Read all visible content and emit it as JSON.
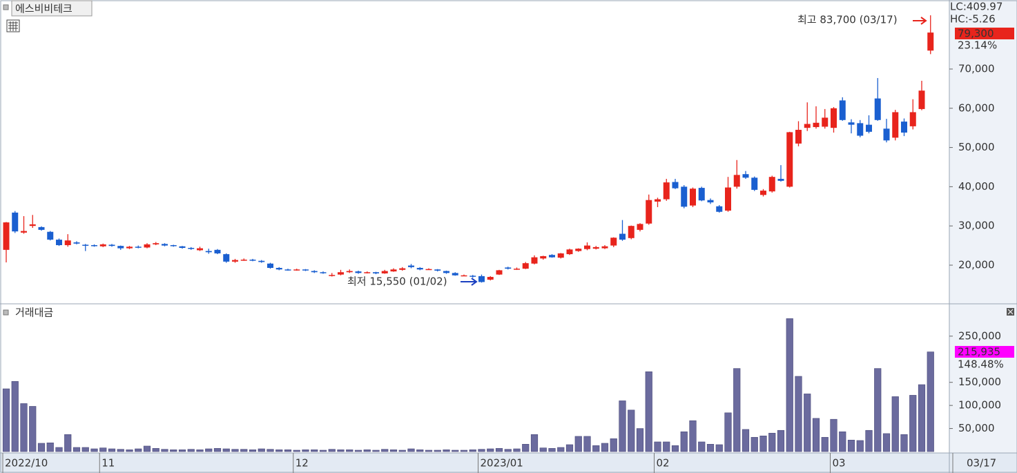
{
  "chart_data": [
    {
      "type": "candlestick",
      "title": "에스비비테크",
      "ylim": [
        10140,
        87600
      ],
      "yticks": [
        {
          "value": 20000,
          "label": "20,000"
        },
        {
          "value": 30000,
          "label": "30,000"
        },
        {
          "value": 40000,
          "label": "40,000"
        },
        {
          "value": 50000,
          "label": "50,000"
        },
        {
          "value": 60000,
          "label": "60,000"
        },
        {
          "value": 70000,
          "label": "70,000"
        }
      ],
      "up_color": "#e8241c",
      "down_color": "#1a5fd0",
      "open": [
        23900,
        33400,
        28300,
        30000,
        29700,
        28500,
        26500,
        25100,
        25800,
        25200,
        25100,
        24800,
        25200,
        24900,
        24300,
        24700,
        24500,
        25300,
        25400,
        25100,
        24800,
        24400,
        23800,
        23600,
        23900,
        22800,
        20900,
        21300,
        21400,
        21100,
        20400,
        19300,
        18900,
        18800,
        18900,
        18500,
        18200,
        17400,
        17600,
        18200,
        18400,
        18000,
        18200,
        17900,
        18400,
        18800,
        19900,
        19300,
        18900,
        18900,
        18500,
        18000,
        17400,
        17300,
        17200,
        16300,
        17600,
        19400,
        19000,
        19100,
        20400,
        21700,
        22600,
        21900,
        22800,
        23600,
        24100,
        24200,
        24300,
        25000,
        28000,
        26900,
        29000,
        30600,
        36200,
        36800,
        41200,
        40000,
        35200,
        39700,
        36600,
        35000,
        33900,
        40000,
        43200,
        42300,
        37900,
        38800,
        42000,
        40000,
        51000,
        55000,
        55200,
        55300,
        55000,
        62000,
        56400,
        56200,
        55800,
        62500,
        54800,
        52500,
        56600,
        55400,
        59800,
        74700
      ],
      "high": [
        31000,
        33800,
        32500,
        32800,
        29900,
        28700,
        26800,
        27900,
        26100,
        25400,
        25300,
        25500,
        25400,
        25000,
        24900,
        25000,
        25600,
        25900,
        25600,
        25200,
        24900,
        24600,
        24700,
        24200,
        24100,
        23000,
        21600,
        21700,
        21600,
        21300,
        20600,
        19500,
        19100,
        19100,
        19000,
        18700,
        18400,
        18000,
        18800,
        18900,
        18600,
        18400,
        18300,
        18800,
        19200,
        19500,
        20300,
        19500,
        19200,
        19000,
        18600,
        18200,
        17600,
        17500,
        17600,
        17200,
        18800,
        19600,
        19400,
        20800,
        22500,
        22400,
        22800,
        23100,
        24200,
        24300,
        25800,
        24900,
        25100,
        27100,
        31500,
        30100,
        30700,
        38000,
        37200,
        42000,
        42000,
        40400,
        39800,
        40000,
        37000,
        35300,
        42500,
        46800,
        44000,
        42600,
        39400,
        42800,
        45500,
        54000,
        56700,
        61500,
        60500,
        59800,
        60300,
        62800,
        57200,
        57000,
        58200,
        67700,
        57300,
        59600,
        57400,
        62300,
        67000,
        83700
      ],
      "low": [
        20700,
        28200,
        28000,
        29500,
        28800,
        26300,
        24900,
        24700,
        25300,
        23600,
        24700,
        24600,
        24700,
        23900,
        24100,
        24300,
        24300,
        25100,
        24800,
        24700,
        24200,
        23900,
        23600,
        22900,
        22800,
        20600,
        20600,
        21100,
        21000,
        20600,
        19100,
        18700,
        18600,
        18600,
        18500,
        18000,
        17800,
        17100,
        17400,
        18000,
        17800,
        17900,
        17700,
        17800,
        18300,
        18600,
        19200,
        18700,
        18800,
        18400,
        17800,
        17300,
        17200,
        16800,
        15550,
        16100,
        17500,
        18900,
        18800,
        19000,
        20200,
        21400,
        21900,
        21700,
        22600,
        23400,
        23800,
        24000,
        24100,
        24600,
        26200,
        26600,
        28600,
        30300,
        34800,
        36400,
        39400,
        34500,
        34800,
        36300,
        35600,
        33400,
        33600,
        39500,
        42000,
        38900,
        37500,
        38500,
        41300,
        39800,
        50300,
        54200,
        54800,
        54800,
        53800,
        56800,
        53600,
        52600,
        53600,
        56800,
        51300,
        51800,
        52900,
        54600,
        59500,
        73800
      ],
      "close": [
        30900,
        28600,
        28700,
        30400,
        29000,
        26500,
        25100,
        26300,
        25500,
        25000,
        24900,
        25300,
        24900,
        24300,
        24700,
        24500,
        25300,
        25600,
        25000,
        24900,
        24400,
        24200,
        24300,
        23300,
        23000,
        20900,
        21300,
        21400,
        21200,
        20800,
        19300,
        18900,
        18800,
        18900,
        18700,
        18200,
        18000,
        17500,
        18200,
        18500,
        18000,
        18200,
        17900,
        18500,
        18900,
        19200,
        19500,
        18900,
        19000,
        18600,
        18000,
        17400,
        17400,
        17100,
        15700,
        17000,
        18700,
        19100,
        19100,
        20500,
        22000,
        22300,
        22000,
        23000,
        24000,
        24200,
        25000,
        24600,
        24800,
        27000,
        26500,
        30000,
        30500,
        36600,
        36800,
        41100,
        39600,
        34900,
        39500,
        36500,
        36000,
        33600,
        39800,
        43000,
        42300,
        39200,
        39000,
        42500,
        41500,
        53900,
        54500,
        56000,
        56300,
        57600,
        60000,
        57000,
        55800,
        53000,
        54000,
        57000,
        51800,
        59000,
        53800,
        59000,
        64500,
        79300
      ],
      "indicators": [
        "LC:409.97",
        "HC:-5.26"
      ],
      "current_price": {
        "value": 79300,
        "label": "79,300"
      },
      "change_pct": "23.14%",
      "high_note": "최고 83,700 (03/17)",
      "low_note": "최저 15,550 (01/02)"
    },
    {
      "type": "bar",
      "title": "거래대금",
      "color": "#6b6b9e",
      "ylim": [
        0,
        320000
      ],
      "yticks": [
        {
          "value": 50000,
          "label": "50,000"
        },
        {
          "value": 100000,
          "label": "100,000"
        },
        {
          "value": 150000,
          "label": "150,000"
        },
        {
          "value": 250000,
          "label": "250,000"
        }
      ],
      "categories": [
        "2022/10",
        null,
        null,
        null,
        null,
        null,
        null,
        null,
        null,
        null,
        null,
        "11",
        null,
        null,
        null,
        null,
        null,
        null,
        null,
        null,
        null,
        null,
        null,
        null,
        null,
        null,
        null,
        null,
        null,
        null,
        null,
        null,
        null,
        "12",
        null,
        null,
        null,
        null,
        null,
        null,
        null,
        null,
        null,
        null,
        null,
        null,
        null,
        null,
        null,
        null,
        null,
        null,
        null,
        null,
        "2023/01",
        null,
        null,
        null,
        null,
        null,
        null,
        null,
        null,
        null,
        null,
        null,
        null,
        null,
        null,
        null,
        null,
        null,
        null,
        null,
        "02",
        null,
        null,
        null,
        null,
        null,
        null,
        null,
        null,
        null,
        null,
        null,
        null,
        null,
        null,
        null,
        null,
        null,
        null,
        null,
        "03",
        null,
        null,
        null,
        null,
        null,
        null,
        null,
        null,
        null,
        null,
        null
      ],
      "values": [
        136000,
        152000,
        104000,
        98000,
        18000,
        19000,
        9000,
        37000,
        9000,
        9000,
        6000,
        8000,
        6000,
        5000,
        4000,
        6000,
        12000,
        7000,
        5000,
        4000,
        4000,
        5000,
        4000,
        6000,
        7000,
        6000,
        5000,
        5000,
        4000,
        6000,
        5000,
        4000,
        4000,
        3000,
        4000,
        4000,
        3000,
        5000,
        4000,
        4000,
        3000,
        4000,
        3000,
        5000,
        4000,
        3000,
        6000,
        4000,
        3000,
        3000,
        4000,
        3000,
        3000,
        4000,
        5000,
        6000,
        7000,
        5000,
        6000,
        16000,
        37000,
        8000,
        7000,
        9000,
        15000,
        33000,
        33000,
        13000,
        18000,
        28000,
        110000,
        90000,
        50000,
        173000,
        21000,
        21000,
        13000,
        43000,
        67000,
        21000,
        16000,
        15000,
        84000,
        180000,
        48000,
        31000,
        34000,
        40000,
        46000,
        288000,
        163000,
        125000,
        72000,
        31000,
        70000,
        43000,
        25000,
        24000,
        46000,
        180000,
        39000,
        119000,
        37000,
        122000,
        145000,
        215935
      ],
      "current_value": {
        "value": 215935,
        "label": "215,935"
      },
      "change_pct": "148.48%",
      "cursor_date": "03/17"
    }
  ]
}
